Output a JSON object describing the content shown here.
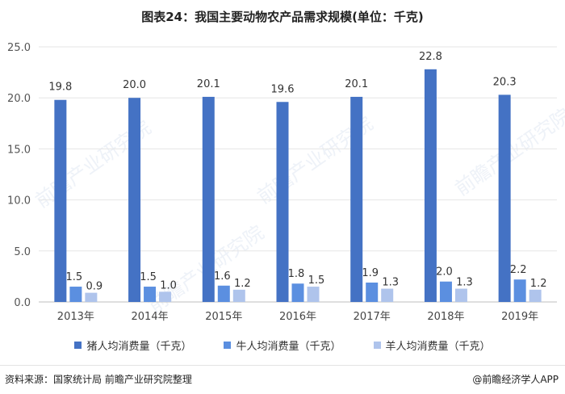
{
  "title": "图表24：我国主要动物农产品需求规模(单位：千克)",
  "source": "资料来源：国家统计局 前瞻产业研究院整理",
  "brand": "@前瞻经济学人APP",
  "watermark": "前瞻产业研究院",
  "colors": {
    "pork": "#4472C4",
    "beef": "#5B8FE0",
    "mutton": "#AFC4EC"
  },
  "chart_data": {
    "type": "bar",
    "categories": [
      "2013年",
      "2014年",
      "2015年",
      "2016年",
      "2017年",
      "2018年",
      "2019年"
    ],
    "series": [
      {
        "name": "猪人均消费量（千克）",
        "values": [
          19.8,
          20.0,
          20.1,
          19.6,
          20.1,
          22.8,
          20.3
        ],
        "labels": [
          "19.8",
          "20.0",
          "20.1",
          "19.6",
          "20.1",
          "22.8",
          "20.3"
        ]
      },
      {
        "name": "牛人均消费量（千克）",
        "values": [
          1.5,
          1.5,
          1.6,
          1.8,
          1.9,
          2.0,
          2.2
        ],
        "labels": [
          "1.5",
          "1.5",
          "1.6",
          "1.8",
          "1.9",
          "2.0",
          "2.2"
        ]
      },
      {
        "name": "羊人均消费量（千克）",
        "values": [
          0.9,
          1.0,
          1.2,
          1.5,
          1.3,
          1.3,
          1.2
        ],
        "labels": [
          "0.9",
          "1.0",
          "1.2",
          "1.5",
          "1.3",
          "1.3",
          "1.2"
        ]
      }
    ],
    "ylim": [
      0,
      25
    ],
    "yticks": [
      "0.0",
      "5.0",
      "10.0",
      "15.0",
      "20.0",
      "25.0"
    ],
    "grid": true,
    "legend": "bottom"
  }
}
